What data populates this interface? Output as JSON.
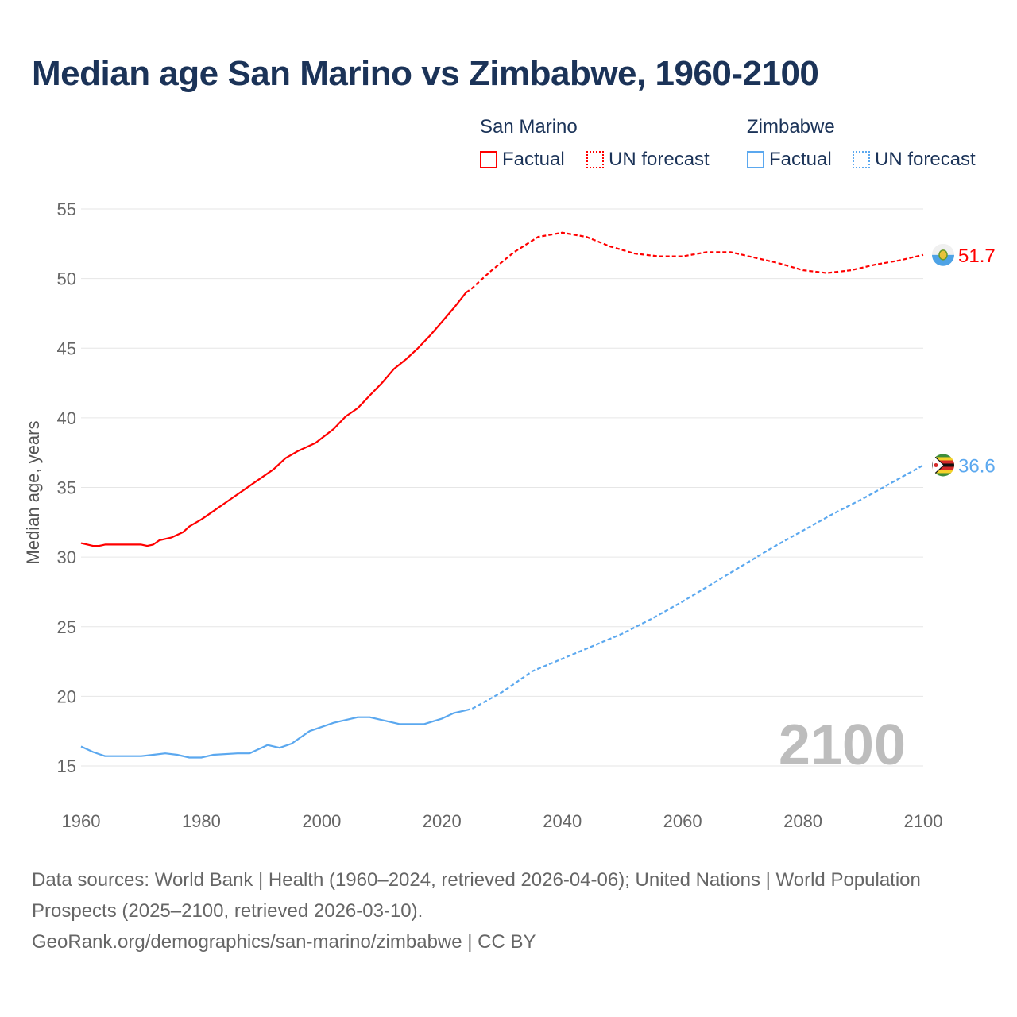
{
  "title": "Median age San Marino vs Zimbabwe, 1960-2100",
  "legend": {
    "groups": [
      {
        "name": "San Marino",
        "factual": "Factual",
        "forecast": "UN forecast",
        "color": "#ff0000"
      },
      {
        "name": "Zimbabwe",
        "factual": "Factual",
        "forecast": "UN forecast",
        "color": "#5ba8ef"
      }
    ]
  },
  "year_watermark": "2100",
  "footer": {
    "sources": "Data sources: World Bank | Health (1960–2024, retrieved 2026-04-06); United Nations | World Population Prospects (2025–2100, retrieved 2026-03-10).",
    "link": "GeoRank.org/demographics/san-marino/zimbabwe | CC BY"
  },
  "chart_data": {
    "type": "line",
    "title": "Median age San Marino vs Zimbabwe, 1960-2100",
    "xlabel": "",
    "ylabel": "Median age, years",
    "xlim": [
      1960,
      2100
    ],
    "ylim": [
      15,
      55
    ],
    "xticks": [
      1960,
      1980,
      2000,
      2020,
      2040,
      2060,
      2080,
      2100
    ],
    "yticks": [
      15,
      20,
      25,
      30,
      35,
      40,
      45,
      50,
      55
    ],
    "grid": true,
    "legend_position": "top-right",
    "series": [
      {
        "name": "San Marino",
        "color": "#ff0000",
        "end_label": "51.7",
        "factual": [
          [
            1960,
            31.0
          ],
          [
            1962,
            30.8
          ],
          [
            1963,
            30.8
          ],
          [
            1964,
            30.9
          ],
          [
            1970,
            30.9
          ],
          [
            1971,
            30.8
          ],
          [
            1972,
            30.9
          ],
          [
            1973,
            31.2
          ],
          [
            1975,
            31.4
          ],
          [
            1977,
            31.8
          ],
          [
            1978,
            32.2
          ],
          [
            1980,
            32.7
          ],
          [
            1982,
            33.3
          ],
          [
            1985,
            34.2
          ],
          [
            1988,
            35.1
          ],
          [
            1990,
            35.7
          ],
          [
            1992,
            36.3
          ],
          [
            1994,
            37.1
          ],
          [
            1996,
            37.6
          ],
          [
            1999,
            38.2
          ],
          [
            2002,
            39.2
          ],
          [
            2004,
            40.1
          ],
          [
            2006,
            40.7
          ],
          [
            2008,
            41.6
          ],
          [
            2010,
            42.5
          ],
          [
            2012,
            43.5
          ],
          [
            2014,
            44.2
          ],
          [
            2016,
            45.0
          ],
          [
            2018,
            45.9
          ],
          [
            2020,
            46.9
          ],
          [
            2022,
            47.9
          ],
          [
            2024,
            49.0
          ]
        ],
        "forecast": [
          [
            2024,
            49.0
          ],
          [
            2025,
            49.3
          ],
          [
            2028,
            50.5
          ],
          [
            2032,
            51.9
          ],
          [
            2036,
            53.0
          ],
          [
            2040,
            53.3
          ],
          [
            2044,
            53.0
          ],
          [
            2048,
            52.3
          ],
          [
            2052,
            51.8
          ],
          [
            2056,
            51.6
          ],
          [
            2060,
            51.6
          ],
          [
            2064,
            51.9
          ],
          [
            2068,
            51.9
          ],
          [
            2072,
            51.5
          ],
          [
            2076,
            51.1
          ],
          [
            2080,
            50.6
          ],
          [
            2084,
            50.4
          ],
          [
            2088,
            50.6
          ],
          [
            2092,
            51.0
          ],
          [
            2096,
            51.3
          ],
          [
            2100,
            51.7
          ]
        ]
      },
      {
        "name": "Zimbabwe",
        "color": "#5ba8ef",
        "end_label": "36.6",
        "factual": [
          [
            1960,
            16.4
          ],
          [
            1962,
            16.0
          ],
          [
            1964,
            15.7
          ],
          [
            1970,
            15.7
          ],
          [
            1972,
            15.8
          ],
          [
            1974,
            15.9
          ],
          [
            1976,
            15.8
          ],
          [
            1978,
            15.6
          ],
          [
            1980,
            15.6
          ],
          [
            1982,
            15.8
          ],
          [
            1986,
            15.9
          ],
          [
            1988,
            15.9
          ],
          [
            1991,
            16.5
          ],
          [
            1993,
            16.3
          ],
          [
            1995,
            16.6
          ],
          [
            1998,
            17.5
          ],
          [
            2000,
            17.8
          ],
          [
            2002,
            18.1
          ],
          [
            2004,
            18.3
          ],
          [
            2006,
            18.5
          ],
          [
            2008,
            18.5
          ],
          [
            2011,
            18.2
          ],
          [
            2013,
            18.0
          ],
          [
            2017,
            18.0
          ],
          [
            2020,
            18.4
          ],
          [
            2022,
            18.8
          ],
          [
            2024,
            19.0
          ]
        ],
        "forecast": [
          [
            2024,
            19.0
          ],
          [
            2025,
            19.1
          ],
          [
            2030,
            20.3
          ],
          [
            2035,
            21.8
          ],
          [
            2040,
            22.7
          ],
          [
            2045,
            23.6
          ],
          [
            2050,
            24.5
          ],
          [
            2055,
            25.6
          ],
          [
            2060,
            26.8
          ],
          [
            2065,
            28.1
          ],
          [
            2070,
            29.4
          ],
          [
            2075,
            30.7
          ],
          [
            2080,
            31.9
          ],
          [
            2085,
            33.1
          ],
          [
            2090,
            34.2
          ],
          [
            2095,
            35.4
          ],
          [
            2100,
            36.6
          ]
        ]
      }
    ]
  }
}
